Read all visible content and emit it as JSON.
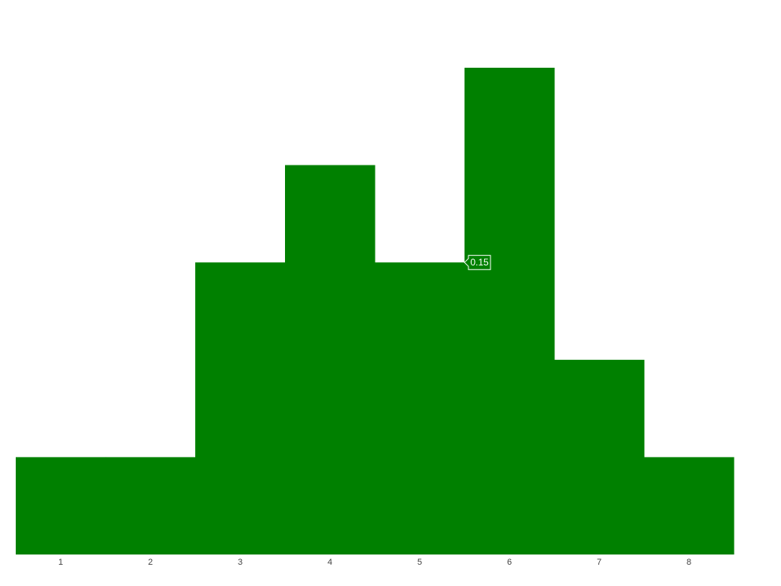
{
  "chart_data": {
    "type": "bar",
    "categories": [
      "1",
      "2",
      "3",
      "4",
      "5",
      "6",
      "7",
      "8"
    ],
    "values": [
      0.05,
      0.05,
      0.15,
      0.2,
      0.15,
      0.25,
      0.1,
      0.05
    ],
    "ylim": [
      0,
      0.25
    ],
    "grid": false,
    "colors": {
      "bar": "#008000",
      "tooltip_border": "#ffffff",
      "tooltip_text": "#ffffff",
      "tick_text": "#444444"
    },
    "tooltip": {
      "category": "5",
      "text": "0.15"
    }
  }
}
